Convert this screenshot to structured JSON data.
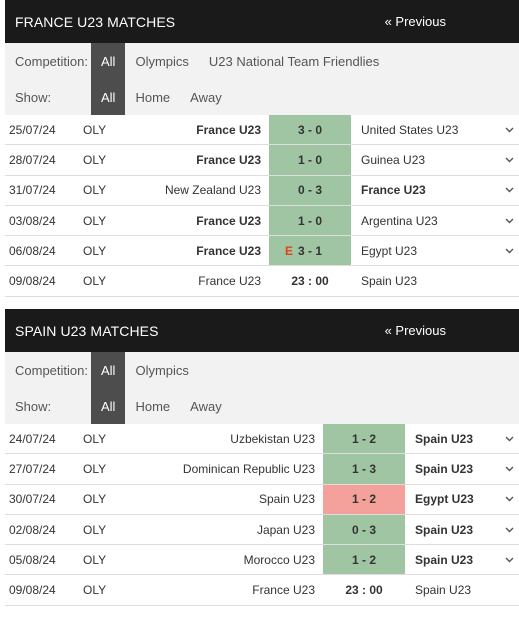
{
  "france": {
    "title": "FRANCE U23 MATCHES",
    "previous_label": "« Previous",
    "competition_label": "Competition:",
    "competition_options": [
      "All",
      "Olympics",
      "U23 National Team Friendlies"
    ],
    "show_label": "Show:",
    "show_options": [
      "All",
      "Home",
      "Away"
    ],
    "matches": [
      {
        "date": "25/07/24",
        "comp": "OLY",
        "home": "France U23",
        "score": "3 - 0",
        "away": "United States U23",
        "result": "win",
        "bold": "home",
        "flag": ""
      },
      {
        "date": "28/07/24",
        "comp": "OLY",
        "home": "France U23",
        "score": "1 - 0",
        "away": "Guinea U23",
        "result": "win",
        "bold": "home",
        "flag": ""
      },
      {
        "date": "31/07/24",
        "comp": "OLY",
        "home": "New Zealand U23",
        "score": "0 - 3",
        "away": "France U23",
        "result": "win",
        "bold": "away",
        "flag": ""
      },
      {
        "date": "03/08/24",
        "comp": "OLY",
        "home": "France U23",
        "score": "1 - 0",
        "away": "Argentina U23",
        "result": "win",
        "bold": "home",
        "flag": ""
      },
      {
        "date": "06/08/24",
        "comp": "OLY",
        "home": "France U23",
        "score": "3 - 1",
        "away": "Egypt U23",
        "result": "win",
        "bold": "home",
        "flag": "E"
      },
      {
        "date": "09/08/24",
        "comp": "OLY",
        "home": "France U23",
        "score": "23 : 00",
        "away": "Spain U23",
        "result": "future",
        "bold": "",
        "flag": ""
      }
    ]
  },
  "spain": {
    "title": "SPAIN U23 MATCHES",
    "previous_label": "« Previous",
    "competition_label": "Competition:",
    "competition_options": [
      "All",
      "Olympics"
    ],
    "show_label": "Show:",
    "show_options": [
      "All",
      "Home",
      "Away"
    ],
    "matches": [
      {
        "date": "24/07/24",
        "comp": "OLY",
        "home": "Uzbekistan U23",
        "score": "1 - 2",
        "away": "Spain U23",
        "result": "win",
        "bold": "away",
        "flag": ""
      },
      {
        "date": "27/07/24",
        "comp": "OLY",
        "home": "Dominican Republic U23",
        "score": "1 - 3",
        "away": "Spain U23",
        "result": "win",
        "bold": "away",
        "flag": ""
      },
      {
        "date": "30/07/24",
        "comp": "OLY",
        "home": "Spain U23",
        "score": "1 - 2",
        "away": "Egypt U23",
        "result": "loss",
        "bold": "away",
        "flag": ""
      },
      {
        "date": "02/08/24",
        "comp": "OLY",
        "home": "Japan U23",
        "score": "0 - 3",
        "away": "Spain U23",
        "result": "win",
        "bold": "away",
        "flag": ""
      },
      {
        "date": "05/08/24",
        "comp": "OLY",
        "home": "Morocco U23",
        "score": "1 - 2",
        "away": "Spain U23",
        "result": "win",
        "bold": "away",
        "flag": ""
      },
      {
        "date": "09/08/24",
        "comp": "OLY",
        "home": "France U23",
        "score": "23 : 00",
        "away": "Spain U23",
        "result": "future",
        "bold": "",
        "flag": ""
      }
    ]
  },
  "colors": {
    "header_bg": "#1a1a1a",
    "filter_bg": "#f2f2f2",
    "active_chip": "#4d4d4d",
    "win": "#9fc5a2",
    "loss": "#f4a09b",
    "flag": "#e0441c"
  },
  "icons": {
    "row_toggle": "chevron-down-icon"
  }
}
